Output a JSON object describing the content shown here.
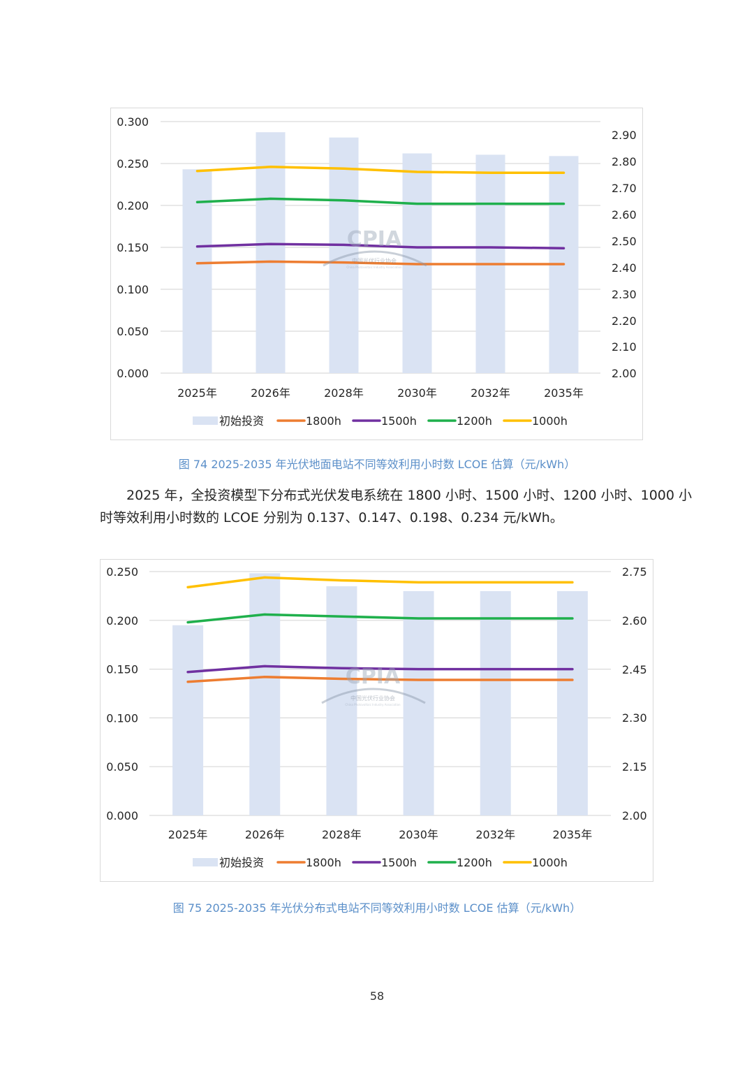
{
  "chart_data": [
    {
      "type": "bar+line",
      "title": "",
      "categories": [
        "2025年",
        "2026年",
        "2028年",
        "2030年",
        "2032年",
        "2035年"
      ],
      "bar_series": {
        "name": "初始投资",
        "axis": "right",
        "values": [
          2.77,
          2.91,
          2.89,
          2.83,
          2.825,
          2.82
        ]
      },
      "line_series": [
        {
          "name": "1800h",
          "color": "#ed7d31",
          "values": [
            0.131,
            0.133,
            0.132,
            0.13,
            0.13,
            0.13
          ]
        },
        {
          "name": "1500h",
          "color": "#7030a0",
          "values": [
            0.151,
            0.154,
            0.153,
            0.15,
            0.15,
            0.149
          ]
        },
        {
          "name": "1200h",
          "color": "#1fb04c",
          "values": [
            0.204,
            0.208,
            0.206,
            0.202,
            0.202,
            0.202
          ]
        },
        {
          "name": "1000h",
          "color": "#ffc000",
          "values": [
            0.241,
            0.246,
            0.244,
            0.24,
            0.239,
            0.239
          ]
        }
      ],
      "bar_color": "#dae3f3",
      "ylim_left": [
        0.0,
        0.3
      ],
      "ylim_right": [
        2.0,
        2.95
      ],
      "left_ticks": [
        "0.300",
        "0.250",
        "0.200",
        "0.150",
        "0.100",
        "0.050",
        "0.000"
      ],
      "right_ticks": [
        "2.90",
        "2.80",
        "2.70",
        "2.60",
        "2.50",
        "2.40",
        "2.30",
        "2.20",
        "2.10",
        "2.00"
      ],
      "legend": [
        "初始投资",
        "1800h",
        "1500h",
        "1200h",
        "1000h"
      ],
      "legend_position": "bottom"
    },
    {
      "type": "bar+line",
      "title": "",
      "categories": [
        "2025年",
        "2026年",
        "2028年",
        "2030年",
        "2032年",
        "2035年"
      ],
      "bar_series": {
        "name": "初始投资",
        "axis": "right",
        "values": [
          2.585,
          2.745,
          2.705,
          2.69,
          2.69,
          2.69
        ]
      },
      "line_series": [
        {
          "name": "1800h",
          "color": "#ed7d31",
          "values": [
            0.137,
            0.142,
            0.14,
            0.139,
            0.139,
            0.139
          ]
        },
        {
          "name": "1500h",
          "color": "#7030a0",
          "values": [
            0.147,
            0.153,
            0.151,
            0.15,
            0.15,
            0.15
          ]
        },
        {
          "name": "1200h",
          "color": "#1fb04c",
          "values": [
            0.198,
            0.206,
            0.204,
            0.202,
            0.202,
            0.202
          ]
        },
        {
          "name": "1000h",
          "color": "#ffc000",
          "values": [
            0.234,
            0.244,
            0.241,
            0.239,
            0.239,
            0.239
          ]
        }
      ],
      "bar_color": "#dae3f3",
      "ylim_left": [
        0.0,
        0.25
      ],
      "ylim_right": [
        2.0,
        2.75
      ],
      "left_ticks": [
        "0.250",
        "0.200",
        "0.150",
        "0.100",
        "0.050",
        "0.000"
      ],
      "right_ticks": [
        "2.75",
        "2.60",
        "2.45",
        "2.30",
        "2.15",
        "2.00"
      ],
      "legend": [
        "初始投资",
        "1800h",
        "1500h",
        "1200h",
        "1000h"
      ],
      "legend_position": "bottom"
    }
  ],
  "captions": {
    "figure74": "图 74    2025-2035 年光伏地面电站不同等效利用小时数 LCOE 估算（元/kWh）",
    "figure75": "图 75    2025-2035 年光伏分布式电站不同等效利用小时数 LCOE 估算（元/kWh）"
  },
  "paragraph": {
    "line1": "2025 年，全投资模型下分布式光伏发电系统在 1800 小时、1500 小时、1200 小时、1000 小",
    "line2": "时等效利用小时数的 LCOE 分别为 0.137、0.147、0.198、0.234 元/kWh。"
  },
  "watermark": {
    "logo_text": "CPIA",
    "org_name": "中国光伏行业协会",
    "org_name_en": "China Photovoltaic Industry Association"
  },
  "page_number": "58"
}
